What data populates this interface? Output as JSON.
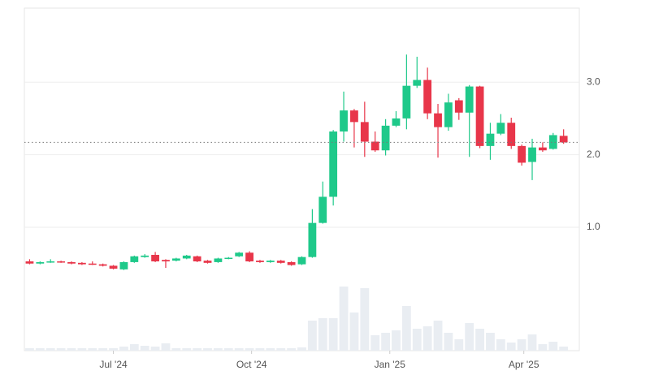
{
  "chart_data": {
    "type": "candlestick",
    "x": [
      0,
      1,
      2,
      3,
      4,
      5,
      6,
      7,
      8,
      9,
      10,
      11,
      12,
      13,
      14,
      15,
      16,
      17,
      18,
      19,
      20,
      21,
      22,
      23,
      24,
      25,
      26,
      27,
      28,
      29,
      30,
      31,
      32,
      33,
      34,
      35,
      36,
      37,
      38,
      39,
      40,
      41,
      42,
      43,
      44,
      45,
      46,
      47,
      48,
      49,
      50,
      51
    ],
    "open": [
      0.53,
      0.5,
      0.52,
      0.53,
      0.52,
      0.51,
      0.5,
      0.49,
      0.47,
      0.42,
      0.52,
      0.59,
      0.62,
      0.55,
      0.54,
      0.57,
      0.6,
      0.54,
      0.52,
      0.57,
      0.6,
      0.65,
      0.54,
      0.52,
      0.54,
      0.52,
      0.49,
      0.59,
      1.06,
      1.42,
      2.32,
      2.61,
      2.45,
      2.18,
      2.06,
      2.4,
      2.5,
      2.95,
      3.03,
      2.57,
      2.38,
      2.75,
      2.58,
      2.94,
      2.12,
      2.29,
      2.44,
      2.12,
      1.9,
      2.1,
      2.08,
      2.26
    ],
    "high": [
      0.56,
      0.53,
      0.56,
      0.54,
      0.53,
      0.52,
      0.53,
      0.5,
      0.48,
      0.53,
      0.61,
      0.63,
      0.66,
      0.56,
      0.58,
      0.62,
      0.61,
      0.55,
      0.58,
      0.59,
      0.66,
      0.67,
      0.55,
      0.55,
      0.55,
      0.53,
      0.6,
      1.25,
      1.63,
      2.34,
      2.87,
      2.63,
      2.73,
      2.32,
      2.49,
      2.6,
      3.38,
      3.35,
      3.2,
      2.7,
      2.84,
      2.78,
      2.96,
      2.95,
      2.44,
      2.56,
      2.51,
      2.14,
      2.22,
      2.17,
      2.3,
      2.35
    ],
    "low": [
      0.49,
      0.49,
      0.51,
      0.51,
      0.49,
      0.48,
      0.48,
      0.46,
      0.42,
      0.41,
      0.51,
      0.58,
      0.52,
      0.44,
      0.53,
      0.56,
      0.52,
      0.5,
      0.51,
      0.56,
      0.59,
      0.52,
      0.51,
      0.51,
      0.5,
      0.47,
      0.48,
      0.58,
      1.05,
      1.3,
      2.18,
      2.1,
      1.97,
      2.04,
      1.99,
      2.38,
      2.35,
      2.92,
      2.49,
      1.96,
      2.33,
      2.48,
      1.97,
      2.09,
      1.93,
      2.27,
      2.08,
      1.85,
      1.65,
      2.04,
      2.07,
      2.15
    ],
    "close": [
      0.5,
      0.52,
      0.53,
      0.52,
      0.5,
      0.49,
      0.49,
      0.47,
      0.43,
      0.52,
      0.6,
      0.61,
      0.53,
      0.53,
      0.57,
      0.61,
      0.53,
      0.51,
      0.57,
      0.58,
      0.65,
      0.53,
      0.52,
      0.54,
      0.51,
      0.48,
      0.59,
      1.06,
      1.42,
      2.32,
      2.61,
      2.45,
      2.18,
      2.06,
      2.4,
      2.5,
      2.95,
      3.03,
      2.57,
      2.38,
      2.72,
      2.58,
      2.94,
      2.12,
      2.29,
      2.44,
      2.12,
      1.89,
      2.1,
      2.06,
      2.27,
      2.17
    ],
    "volume": [
      3,
      3,
      3,
      3,
      3,
      3,
      3,
      3,
      3,
      5,
      8,
      6,
      5,
      9,
      3,
      3,
      3,
      3,
      3,
      3,
      3,
      3,
      3,
      3,
      3,
      3,
      4,
      37,
      40,
      40,
      79,
      47,
      77,
      19,
      22,
      25,
      55,
      27,
      30,
      37,
      22,
      14,
      34,
      27,
      22,
      14,
      10,
      14,
      20,
      8,
      11,
      5
    ],
    "up_color": "#1fc98a",
    "down_color": "#e8364a",
    "volume_color": "#e9edf2",
    "xlim": [
      -0.5,
      52.5
    ],
    "xticks": [
      {
        "value": 8,
        "label": "Jul '24"
      },
      {
        "value": 21.2,
        "label": "Oct '24"
      },
      {
        "value": 34.4,
        "label": "Jan '25"
      },
      {
        "value": 47.2,
        "label": "Apr '25"
      }
    ],
    "ylim": [
      -0.7,
      4.02
    ],
    "yticks": [
      {
        "value": 1,
        "label": "1.0"
      },
      {
        "value": 2,
        "label": "2.0"
      },
      {
        "value": 3,
        "label": "3.0"
      }
    ],
    "volume_lim": [
      0,
      100
    ],
    "grid": true
  }
}
